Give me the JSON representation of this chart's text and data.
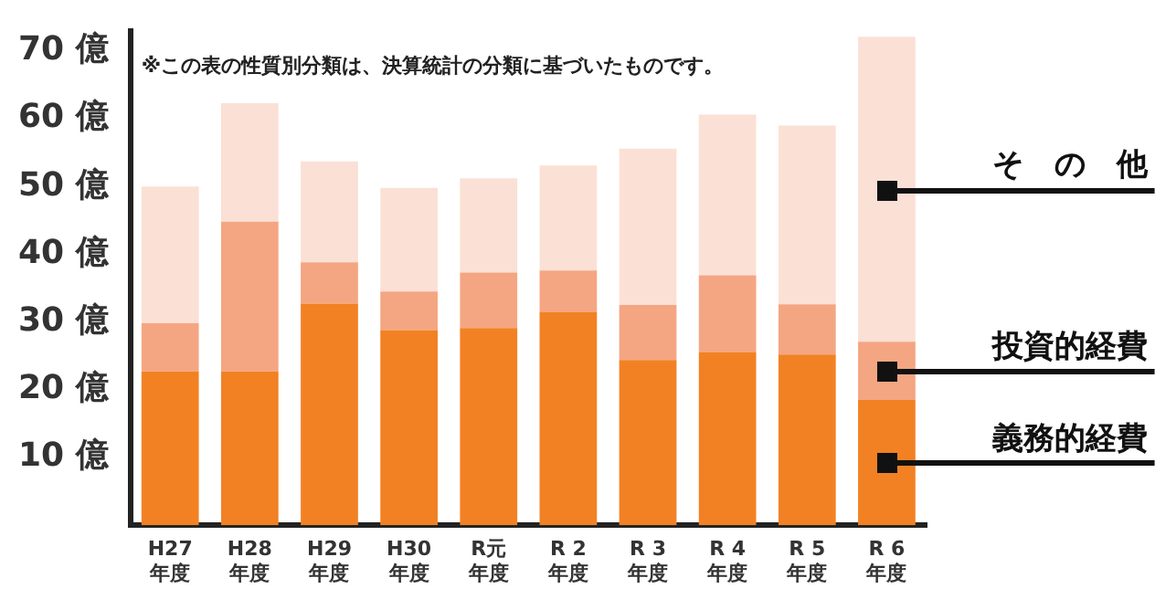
{
  "chart_data": {
    "type": "bar",
    "stacked": true,
    "categories": [
      "H27年度",
      "H28年度",
      "H29年度",
      "H30年度",
      "R元年度",
      "R 2年度",
      "R 3年度",
      "R 4年度",
      "R 5年度",
      "R 6年度"
    ],
    "series": [
      {
        "name": "義務的経費",
        "color": "#f28124",
        "values": [
          22.7,
          22.7,
          32.7,
          28.8,
          29.1,
          31.5,
          24.4,
          25.5,
          25.2,
          18.5
        ]
      },
      {
        "name": "投資的経費",
        "color": "#f4a682",
        "values": [
          7.1,
          22.1,
          6.1,
          5.7,
          8.2,
          6.1,
          8.1,
          11.4,
          7.4,
          8.6
        ]
      },
      {
        "name": "そ　の　他",
        "color": "#fbe0d6",
        "values": [
          20.2,
          17.5,
          14.9,
          15.3,
          13.9,
          15.5,
          23.1,
          23.7,
          26.4,
          45.0
        ]
      }
    ],
    "ylim": [
      0,
      73
    ],
    "yticks": [
      {
        "value": 0,
        "label": null
      },
      {
        "value": 10,
        "label": "10 億"
      },
      {
        "value": 20,
        "label": "20 億"
      },
      {
        "value": 30,
        "label": "30 億"
      },
      {
        "value": 40,
        "label": "40 億"
      },
      {
        "value": 50,
        "label": "50 億"
      },
      {
        "value": 60,
        "label": "60 億"
      },
      {
        "value": 70,
        "label": "70 億"
      }
    ],
    "grid": false,
    "legend": "right",
    "annotations": [
      "※この表の性質別分類は、決算統計の分類に基づいたものです。"
    ]
  }
}
